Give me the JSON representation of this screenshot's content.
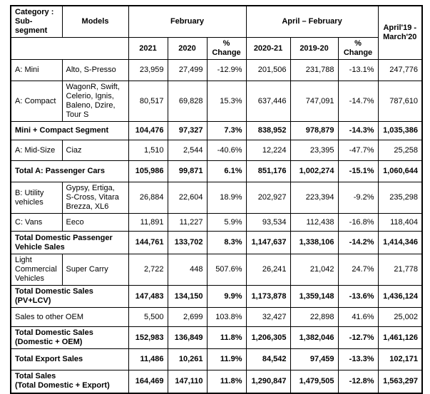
{
  "colors": {
    "background": "#ffffff",
    "text": "#000000",
    "border": "#000000"
  },
  "table": {
    "header": {
      "category": "Category :\nSub-segment",
      "models": "Models",
      "february": "February",
      "april_february": "April – February",
      "april19_march20": "April'19 - March'20",
      "columns": [
        "2021",
        "2020",
        "%\nChange",
        "2020-21",
        "2019-20",
        "%\nChange"
      ]
    },
    "rows": [
      {
        "label": "A: Mini",
        "models": "Alto, S-Presso",
        "bold": false,
        "values": [
          "23,959",
          "27,499",
          "-12.9%",
          "201,506",
          "231,788",
          "-13.1%",
          "247,776"
        ]
      },
      {
        "label": "A: Compact",
        "models": "WagonR, Swift, Celerio, Ignis, Baleno, Dzire, Tour S",
        "bold": false,
        "values": [
          "80,517",
          "69,828",
          "15.3%",
          "637,446",
          "747,091",
          "-14.7%",
          "787,610"
        ]
      },
      {
        "label": "Mini + Compact Segment",
        "bold": true,
        "values": [
          "104,476",
          "97,327",
          "7.3%",
          "838,952",
          "978,879",
          "-14.3%",
          "1,035,386"
        ]
      },
      {
        "label": "A: Mid-Size",
        "models": "Ciaz",
        "bold": false,
        "values": [
          "1,510",
          "2,544",
          "-40.6%",
          "12,224",
          "23,395",
          "-47.7%",
          "25,258"
        ]
      },
      {
        "label": "Total A: Passenger Cars",
        "bold": true,
        "values": [
          "105,986",
          "99,871",
          "6.1%",
          "851,176",
          "1,002,274",
          "-15.1%",
          "1,060,644"
        ]
      },
      {
        "label": "B: Utility vehicles",
        "models": "Gypsy, Ertiga, S-Cross, Vitara Brezza, XL6",
        "bold": false,
        "values": [
          "26,884",
          "22,604",
          "18.9%",
          "202,927",
          "223,394",
          "-9.2%",
          "235,298"
        ]
      },
      {
        "label": "C: Vans",
        "models": "Eeco",
        "bold": false,
        "values": [
          "11,891",
          "11,227",
          "5.9%",
          "93,534",
          "112,438",
          "-16.8%",
          "118,404"
        ]
      },
      {
        "label": "Total Domestic Passenger\nVehicle Sales",
        "bold": true,
        "values": [
          "144,761",
          "133,702",
          "8.3%",
          "1,147,637",
          "1,338,106",
          "-14.2%",
          "1,414,346"
        ]
      },
      {
        "label": "Light Commercial Vehicles",
        "models": "Super Carry",
        "bold": false,
        "values": [
          "2,722",
          "448",
          "507.6%",
          "26,241",
          "21,042",
          "24.7%",
          "21,778"
        ]
      },
      {
        "label": "Total Domestic Sales\n(PV+LCV)",
        "bold": true,
        "values": [
          "147,483",
          "134,150",
          "9.9%",
          "1,173,878",
          "1,359,148",
          "-13.6%",
          "1,436,124"
        ]
      },
      {
        "label": "Sales to other OEM",
        "bold": false,
        "values": [
          "5,500",
          "2,699",
          "103.8%",
          "32,427",
          "22,898",
          "41.6%",
          "25,002"
        ]
      },
      {
        "label": "Total Domestic Sales\n(Domestic + OEM)",
        "bold": true,
        "values": [
          "152,983",
          "136,849",
          "11.8%",
          "1,206,305",
          "1,382,046",
          "-12.7%",
          "1,461,126"
        ]
      },
      {
        "label": "Total Export Sales",
        "bold": true,
        "values": [
          "11,486",
          "10,261",
          "11.9%",
          "84,542",
          "97,459",
          "-13.3%",
          "102,171"
        ]
      },
      {
        "label": "Total Sales\n(Total Domestic + Export)",
        "bold": true,
        "values": [
          "164,469",
          "147,110",
          "11.8%",
          "1,290,847",
          "1,479,505",
          "-12.8%",
          "1,563,297"
        ]
      }
    ]
  }
}
